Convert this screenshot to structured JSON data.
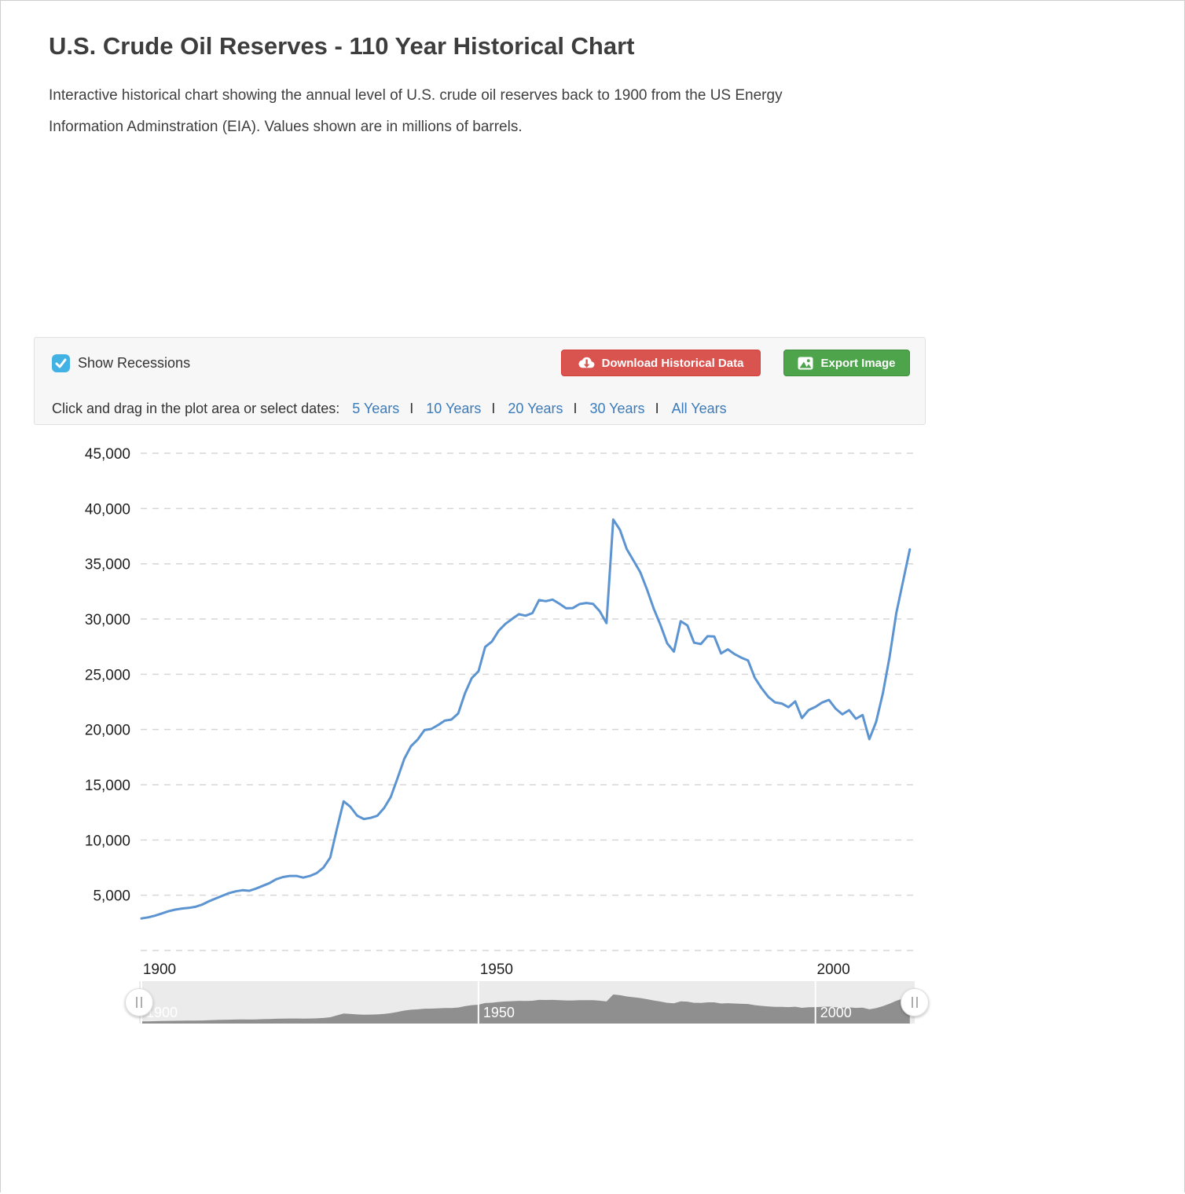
{
  "page": {
    "title": "U.S. Crude Oil Reserves - 110 Year Historical Chart",
    "description_line1": "Interactive historical chart showing the annual level of U.S. crude oil reserves back to 1900 from the US Energy",
    "description_line2": "Information Adminstration (EIA). Values shown are in millions of barrels."
  },
  "controls": {
    "show_recessions_label": "Show Recessions",
    "show_recessions_checked": true,
    "download_button_label": "Download Historical Data",
    "export_button_label": "Export Image",
    "range_prompt": "Click and drag in the plot area or select dates:",
    "range_links": [
      "5 Years",
      "10 Years",
      "20 Years",
      "30 Years",
      "All Years"
    ],
    "separator": "I"
  },
  "colors": {
    "line": "#5c94d1",
    "grid": "#d6d6d6",
    "axis_text": "#1f1f1f",
    "navigator_bg": "#ebebeb",
    "navigator_area": "#8f8f8f",
    "checkbox_blue": "#41b2e3",
    "download_red": "#d9534f",
    "export_green": "#4da44b",
    "link_blue": "#3b7bb9"
  },
  "chart_data": {
    "type": "line",
    "title": "U.S. Crude Oil Reserves - 110 Year Historical Chart",
    "series_name": "U.S. Crude Oil Reserves",
    "units": "millions of barrels",
    "x_start": 1900,
    "x_end": 2014,
    "frequency": "annual",
    "x": [
      1900,
      1901,
      1902,
      1903,
      1904,
      1905,
      1906,
      1907,
      1908,
      1909,
      1910,
      1911,
      1912,
      1913,
      1914,
      1915,
      1916,
      1917,
      1918,
      1919,
      1920,
      1921,
      1922,
      1923,
      1924,
      1925,
      1926,
      1927,
      1928,
      1929,
      1930,
      1931,
      1932,
      1933,
      1934,
      1935,
      1936,
      1937,
      1938,
      1939,
      1940,
      1941,
      1942,
      1943,
      1944,
      1945,
      1946,
      1947,
      1948,
      1949,
      1950,
      1951,
      1952,
      1953,
      1954,
      1955,
      1956,
      1957,
      1958,
      1959,
      1960,
      1961,
      1962,
      1963,
      1964,
      1965,
      1966,
      1967,
      1968,
      1969,
      1970,
      1971,
      1972,
      1973,
      1974,
      1975,
      1976,
      1977,
      1978,
      1979,
      1980,
      1981,
      1982,
      1983,
      1984,
      1985,
      1986,
      1987,
      1988,
      1989,
      1990,
      1991,
      1992,
      1993,
      1994,
      1995,
      1996,
      1997,
      1998,
      1999,
      2000,
      2001,
      2002,
      2003,
      2004,
      2005,
      2006,
      2007,
      2008,
      2009,
      2010,
      2011,
      2012,
      2013,
      2014
    ],
    "values": [
      2900,
      3000,
      3150,
      3350,
      3550,
      3700,
      3800,
      3850,
      3950,
      4150,
      4450,
      4700,
      4950,
      5200,
      5350,
      5450,
      5400,
      5600,
      5850,
      6100,
      6450,
      6650,
      6750,
      6750,
      6600,
      6750,
      7000,
      7500,
      8400,
      11000,
      13500,
      13000,
      12200,
      11900,
      12000,
      12200,
      12900,
      13900,
      15600,
      17350,
      18500,
      19100,
      19950,
      20050,
      20400,
      20800,
      20900,
      21450,
      23280,
      24649,
      25268,
      27468,
      27961,
      28945,
      29561,
      30012,
      30435,
      30300,
      30536,
      31719,
      31613,
      31758,
      31389,
      30970,
      30991,
      31352,
      31452,
      31377,
      30707,
      29632,
      39001,
      38063,
      36339,
      35300,
      34250,
      32682,
      30942,
      29486,
      27804,
      27051,
      29805,
      29426,
      27858,
      27735,
      28446,
      28416,
      26889,
      27256,
      26825,
      26501,
      26254,
      24682,
      23745,
      22957,
      22457,
      22351,
      22017,
      22546,
      21034,
      21765,
      22045,
      22446,
      22677,
      21891,
      21371,
      21757,
      20972,
      21317,
      19121,
      20682,
      23267,
      26544,
      30529,
      33414,
      36300
    ],
    "ylim": [
      0,
      45000
    ],
    "ytick_step": 5000,
    "yticks": [
      {
        "value": 45000,
        "label": "45,000"
      },
      {
        "value": 40000,
        "label": "40,000"
      },
      {
        "value": 35000,
        "label": "35,000"
      },
      {
        "value": 30000,
        "label": "30,000"
      },
      {
        "value": 25000,
        "label": "25,000"
      },
      {
        "value": 20000,
        "label": "20,000"
      },
      {
        "value": 15000,
        "label": "15,000"
      },
      {
        "value": 10000,
        "label": "10,000"
      },
      {
        "value": 5000,
        "label": "5,000"
      }
    ],
    "xticks": [
      1900,
      1950,
      2000
    ],
    "grid": "dashed-horizontal",
    "legend": "none",
    "navigator_labels": [
      "1900",
      "1950",
      "2000"
    ]
  }
}
